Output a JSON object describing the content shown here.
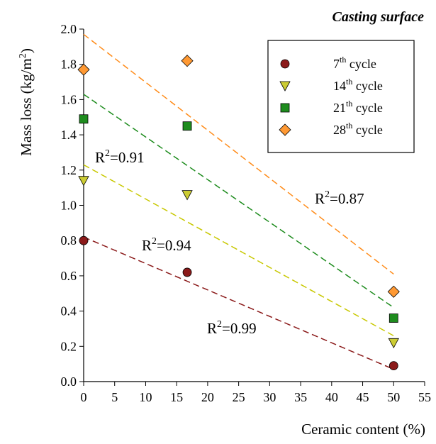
{
  "chart_data": {
    "type": "scatter",
    "title": "Casting surface",
    "xlabel": "Ceramic content (%)",
    "ylabel": {
      "base": "Mass loss (kg/m",
      "sup": "2",
      "end": ")"
    },
    "xlim": [
      0,
      55
    ],
    "ylim": [
      0,
      2.0
    ],
    "xticks": [
      "0",
      "5",
      "10",
      "15",
      "20",
      "25",
      "30",
      "35",
      "40",
      "45",
      "50",
      "55"
    ],
    "yticks": [
      "0.0",
      "0.2",
      "0.4",
      "0.6",
      "0.8",
      "1.0",
      "1.2",
      "1.4",
      "1.6",
      "1.8",
      "2.0"
    ],
    "x": [
      0,
      16.7,
      50
    ],
    "legend_position": "top-right",
    "series": [
      {
        "name": {
          "pre": "7",
          "sup": "th",
          "post": " cycle"
        },
        "marker": "circle",
        "color": "#8B1A1A",
        "line_color": "#8B1A1A",
        "values": [
          0.8,
          0.62,
          0.09
        ],
        "trend": [
          0.82,
          0.07
        ],
        "r2": {
          "pre": "R",
          "sup": "2",
          "post": "=0.99"
        }
      },
      {
        "name": {
          "pre": "14",
          "sup": "th",
          "post": " cycle"
        },
        "marker": "triangle-down",
        "color": "#CCCC33",
        "line_color": "#C8C800",
        "values": [
          1.14,
          1.06,
          0.22
        ],
        "trend": [
          1.23,
          0.26
        ],
        "r2": {
          "pre": "R",
          "sup": "2",
          "post": "=0.94"
        }
      },
      {
        "name": {
          "pre": "21",
          "sup": "th",
          "post": " cycle"
        },
        "marker": "square",
        "color": "#1E8C1E",
        "line_color": "#1E8C1E",
        "values": [
          1.49,
          1.45,
          0.36
        ],
        "trend": [
          1.63,
          0.42
        ],
        "r2": {
          "pre": "R",
          "sup": "2",
          "post": "=0.91"
        }
      },
      {
        "name": {
          "pre": "28",
          "sup": "th",
          "post": " cycle"
        },
        "marker": "diamond",
        "color": "#FF9933",
        "line_color": "#FF8C1A",
        "values": [
          1.77,
          1.82,
          0.51
        ],
        "trend": [
          1.97,
          0.61
        ],
        "r2": {
          "pre": "R",
          "sup": "2",
          "post": "=0.87"
        }
      }
    ]
  }
}
